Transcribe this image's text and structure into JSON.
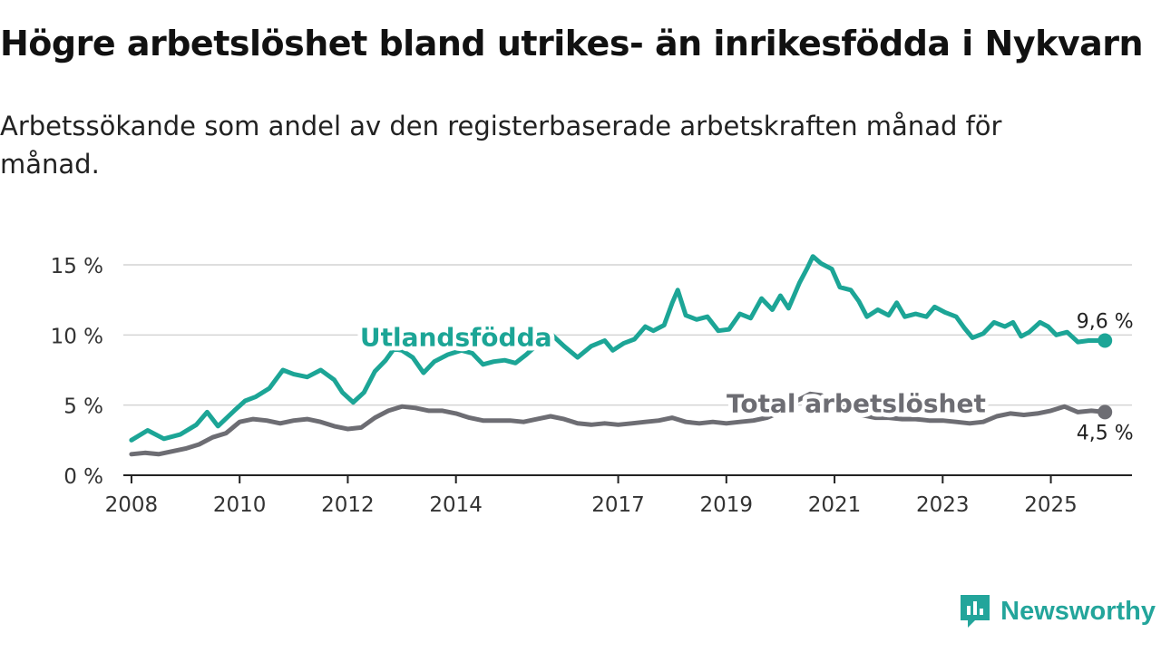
{
  "title": "Högre arbetslöshet bland utrikes- än inrikesfödda i Nykvarn",
  "subtitle": "Arbetssökande som andel av den registerbaserade arbetskraften månad för månad.",
  "brand": {
    "name": "Newsworthy",
    "color": "#23a59b"
  },
  "colors": {
    "foreign": "#1ca596",
    "total": "#6d6d73",
    "grid": "#d4d4d4",
    "axis": "#222222"
  },
  "chart_data": {
    "type": "line",
    "title": "Högre arbetslöshet bland utrikes- än inrikesfödda i Nykvarn",
    "xlabel": "",
    "ylabel": "",
    "ylim": [
      0,
      16
    ],
    "xlim": [
      2007.85,
      2026.5
    ],
    "y_ticks": [
      0,
      5,
      10,
      15
    ],
    "y_tick_labels": [
      "0 %",
      "5 %",
      "10 %",
      "15 %"
    ],
    "x_ticks": [
      2008,
      2010,
      2012,
      2014,
      2017,
      2019,
      2021,
      2023,
      2025
    ],
    "x_tick_labels": [
      "2008",
      "2010",
      "2012",
      "2014",
      "2017",
      "2019",
      "2021",
      "2023",
      "2025"
    ],
    "grid": true,
    "series": [
      {
        "name": "Utlandsfödda",
        "end_label": "9,6 %",
        "points": [
          [
            2008.0,
            2.5
          ],
          [
            2008.3,
            3.2
          ],
          [
            2008.6,
            2.6
          ],
          [
            2008.9,
            2.9
          ],
          [
            2009.2,
            3.6
          ],
          [
            2009.4,
            4.5
          ],
          [
            2009.6,
            3.5
          ],
          [
            2009.9,
            4.6
          ],
          [
            2010.1,
            5.3
          ],
          [
            2010.3,
            5.6
          ],
          [
            2010.55,
            6.2
          ],
          [
            2010.8,
            7.5
          ],
          [
            2011.0,
            7.2
          ],
          [
            2011.25,
            7.0
          ],
          [
            2011.5,
            7.5
          ],
          [
            2011.75,
            6.8
          ],
          [
            2011.9,
            5.9
          ],
          [
            2012.1,
            5.2
          ],
          [
            2012.3,
            5.9
          ],
          [
            2012.5,
            7.4
          ],
          [
            2012.7,
            8.2
          ],
          [
            2012.85,
            9.0
          ],
          [
            2013.0,
            8.9
          ],
          [
            2013.2,
            8.4
          ],
          [
            2013.4,
            7.3
          ],
          [
            2013.6,
            8.1
          ],
          [
            2013.85,
            8.6
          ],
          [
            2014.1,
            8.9
          ],
          [
            2014.3,
            8.7
          ],
          [
            2014.5,
            7.9
          ],
          [
            2014.7,
            8.1
          ],
          [
            2014.9,
            8.2
          ],
          [
            2015.1,
            8.0
          ],
          [
            2015.3,
            8.6
          ],
          [
            2015.5,
            9.3
          ],
          [
            2015.75,
            10.1
          ],
          [
            2016.0,
            9.2
          ],
          [
            2016.25,
            8.4
          ],
          [
            2016.5,
            9.2
          ],
          [
            2016.75,
            9.6
          ],
          [
            2016.9,
            8.9
          ],
          [
            2017.1,
            9.4
          ],
          [
            2017.3,
            9.7
          ],
          [
            2017.5,
            10.6
          ],
          [
            2017.65,
            10.3
          ],
          [
            2017.85,
            10.7
          ],
          [
            2018.0,
            12.3
          ],
          [
            2018.1,
            13.2
          ],
          [
            2018.25,
            11.4
          ],
          [
            2018.45,
            11.1
          ],
          [
            2018.65,
            11.3
          ],
          [
            2018.85,
            10.3
          ],
          [
            2019.05,
            10.4
          ],
          [
            2019.25,
            11.5
          ],
          [
            2019.45,
            11.2
          ],
          [
            2019.65,
            12.6
          ],
          [
            2019.85,
            11.8
          ],
          [
            2020.0,
            12.8
          ],
          [
            2020.15,
            11.9
          ],
          [
            2020.35,
            13.7
          ],
          [
            2020.5,
            14.8
          ],
          [
            2020.6,
            15.6
          ],
          [
            2020.75,
            15.1
          ],
          [
            2020.95,
            14.7
          ],
          [
            2021.1,
            13.4
          ],
          [
            2021.3,
            13.2
          ],
          [
            2021.45,
            12.4
          ],
          [
            2021.6,
            11.3
          ],
          [
            2021.8,
            11.8
          ],
          [
            2022.0,
            11.4
          ],
          [
            2022.15,
            12.3
          ],
          [
            2022.3,
            11.3
          ],
          [
            2022.5,
            11.5
          ],
          [
            2022.7,
            11.3
          ],
          [
            2022.85,
            12.0
          ],
          [
            2023.05,
            11.6
          ],
          [
            2023.25,
            11.3
          ],
          [
            2023.4,
            10.5
          ],
          [
            2023.55,
            9.8
          ],
          [
            2023.75,
            10.1
          ],
          [
            2023.95,
            10.9
          ],
          [
            2024.15,
            10.6
          ],
          [
            2024.3,
            10.9
          ],
          [
            2024.45,
            9.9
          ],
          [
            2024.6,
            10.2
          ],
          [
            2024.8,
            10.9
          ],
          [
            2024.95,
            10.6
          ],
          [
            2025.1,
            10.0
          ],
          [
            2025.3,
            10.2
          ],
          [
            2025.5,
            9.5
          ],
          [
            2025.7,
            9.6
          ],
          [
            2025.85,
            9.6
          ],
          [
            2026.0,
            9.6
          ]
        ]
      },
      {
        "name": "Total arbetslöshet",
        "end_label": "4,5 %",
        "points": [
          [
            2008.0,
            1.5
          ],
          [
            2008.25,
            1.6
          ],
          [
            2008.5,
            1.5
          ],
          [
            2008.75,
            1.7
          ],
          [
            2009.0,
            1.9
          ],
          [
            2009.25,
            2.2
          ],
          [
            2009.5,
            2.7
          ],
          [
            2009.75,
            3.0
          ],
          [
            2010.0,
            3.8
          ],
          [
            2010.25,
            4.0
          ],
          [
            2010.5,
            3.9
          ],
          [
            2010.75,
            3.7
          ],
          [
            2011.0,
            3.9
          ],
          [
            2011.25,
            4.0
          ],
          [
            2011.5,
            3.8
          ],
          [
            2011.75,
            3.5
          ],
          [
            2012.0,
            3.3
          ],
          [
            2012.25,
            3.4
          ],
          [
            2012.5,
            4.1
          ],
          [
            2012.75,
            4.6
          ],
          [
            2013.0,
            4.9
          ],
          [
            2013.25,
            4.8
          ],
          [
            2013.5,
            4.6
          ],
          [
            2013.75,
            4.6
          ],
          [
            2014.0,
            4.4
          ],
          [
            2014.25,
            4.1
          ],
          [
            2014.5,
            3.9
          ],
          [
            2014.75,
            3.9
          ],
          [
            2015.0,
            3.9
          ],
          [
            2015.25,
            3.8
          ],
          [
            2015.5,
            4.0
          ],
          [
            2015.75,
            4.2
          ],
          [
            2016.0,
            4.0
          ],
          [
            2016.25,
            3.7
          ],
          [
            2016.5,
            3.6
          ],
          [
            2016.75,
            3.7
          ],
          [
            2017.0,
            3.6
          ],
          [
            2017.25,
            3.7
          ],
          [
            2017.5,
            3.8
          ],
          [
            2017.75,
            3.9
          ],
          [
            2018.0,
            4.1
          ],
          [
            2018.25,
            3.8
          ],
          [
            2018.5,
            3.7
          ],
          [
            2018.75,
            3.8
          ],
          [
            2019.0,
            3.7
          ],
          [
            2019.25,
            3.8
          ],
          [
            2019.5,
            3.9
          ],
          [
            2019.75,
            4.1
          ],
          [
            2020.0,
            4.5
          ],
          [
            2020.3,
            5.3
          ],
          [
            2020.55,
            5.8
          ],
          [
            2020.75,
            5.7
          ],
          [
            2021.0,
            5.1
          ],
          [
            2021.25,
            4.7
          ],
          [
            2021.5,
            4.3
          ],
          [
            2021.75,
            4.1
          ],
          [
            2022.0,
            4.1
          ],
          [
            2022.25,
            4.0
          ],
          [
            2022.5,
            4.0
          ],
          [
            2022.75,
            3.9
          ],
          [
            2023.0,
            3.9
          ],
          [
            2023.25,
            3.8
          ],
          [
            2023.5,
            3.7
          ],
          [
            2023.75,
            3.8
          ],
          [
            2024.0,
            4.2
          ],
          [
            2024.25,
            4.4
          ],
          [
            2024.5,
            4.3
          ],
          [
            2024.75,
            4.4
          ],
          [
            2025.0,
            4.6
          ],
          [
            2025.25,
            4.9
          ],
          [
            2025.5,
            4.5
          ],
          [
            2025.75,
            4.6
          ],
          [
            2026.0,
            4.5
          ]
        ]
      }
    ],
    "annotations": [
      {
        "text": "Utlandsfödda",
        "series": "Utlandsfödda",
        "x": 2014.0,
        "y": 9.2
      },
      {
        "text": "Total arbetslöshet",
        "series": "Total arbetslöshet",
        "x": 2021.4,
        "y": 4.5
      }
    ]
  }
}
